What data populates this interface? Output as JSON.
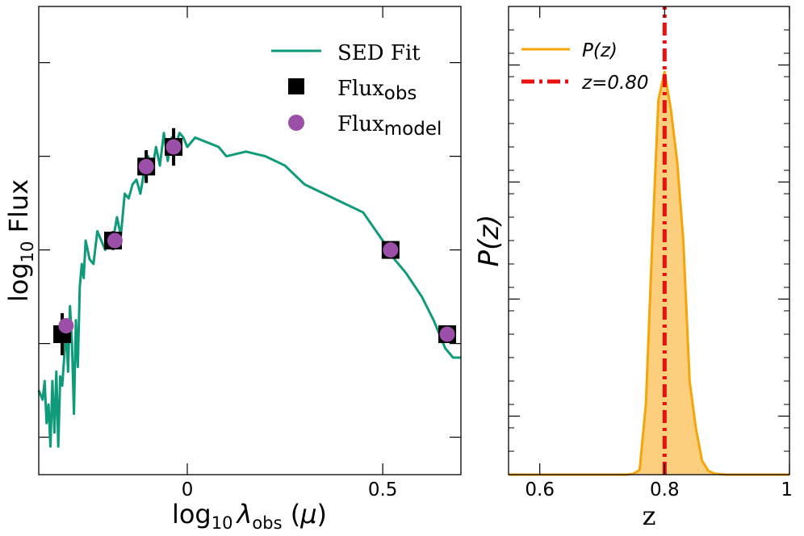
{
  "chart_data": [
    {
      "type": "line",
      "title": "",
      "xlabel": "log10 λobs (μ)",
      "ylabel": "log10 Flux",
      "xlim": [
        -0.38,
        0.7
      ],
      "ylim": [
        0,
        1
      ],
      "xticks": [
        0,
        0.5
      ],
      "xtick_labels": [
        "0",
        "0.5"
      ],
      "yticks": [
        0.08,
        0.28,
        0.48,
        0.68,
        0.88
      ],
      "ytick_labels": [],
      "grid": false,
      "legend_position": "top-right",
      "legend": {
        "sed_fit": "SED Fit",
        "obs_base": "Flux",
        "obs_sub": "obs",
        "model_base": "Flux",
        "model_sub": "model"
      },
      "series": [
        {
          "name": "SED Fit",
          "color": "#0f9b7a",
          "x": [
            -0.38,
            -0.37,
            -0.365,
            -0.36,
            -0.355,
            -0.35,
            -0.345,
            -0.34,
            -0.335,
            -0.33,
            -0.325,
            -0.32,
            -0.315,
            -0.31,
            -0.305,
            -0.3,
            -0.295,
            -0.29,
            -0.285,
            -0.28,
            -0.275,
            -0.27,
            -0.265,
            -0.26,
            -0.25,
            -0.24,
            -0.23,
            -0.22,
            -0.21,
            -0.2,
            -0.19,
            -0.18,
            -0.17,
            -0.16,
            -0.15,
            -0.14,
            -0.13,
            -0.12,
            -0.11,
            -0.1,
            -0.09,
            -0.08,
            -0.07,
            -0.06,
            -0.05,
            -0.04,
            -0.03,
            -0.02,
            -0.01,
            0.0,
            0.02,
            0.05,
            0.08,
            0.1,
            0.15,
            0.2,
            0.25,
            0.3,
            0.35,
            0.4,
            0.45,
            0.5,
            0.53,
            0.56,
            0.6,
            0.63,
            0.66,
            0.68,
            0.7
          ],
          "y": [
            0.18,
            0.16,
            0.2,
            0.11,
            0.15,
            0.06,
            0.2,
            0.09,
            0.22,
            0.06,
            0.21,
            0.19,
            0.25,
            0.32,
            0.22,
            0.36,
            0.28,
            0.13,
            0.33,
            0.23,
            0.4,
            0.45,
            0.42,
            0.5,
            0.46,
            0.45,
            0.52,
            0.5,
            0.48,
            0.5,
            0.5,
            0.55,
            0.51,
            0.6,
            0.59,
            0.62,
            0.63,
            0.6,
            0.65,
            0.68,
            0.65,
            0.7,
            0.66,
            0.73,
            0.67,
            0.72,
            0.7,
            0.73,
            0.72,
            0.7,
            0.72,
            0.71,
            0.7,
            0.68,
            0.69,
            0.68,
            0.66,
            0.62,
            0.6,
            0.58,
            0.56,
            0.5,
            0.46,
            0.43,
            0.38,
            0.33,
            0.27,
            0.25,
            0.25
          ]
        },
        {
          "name": "Flux obs",
          "color": "#000000",
          "x": [
            -0.32,
            -0.19,
            -0.105,
            -0.035,
            0.52,
            0.665
          ],
          "y": [
            0.3,
            0.5,
            0.658,
            0.7,
            0.48,
            0.3
          ],
          "yerr": [
            0.045,
            0.02,
            0.035,
            0.04,
            0.012,
            0.012
          ]
        },
        {
          "name": "Flux model",
          "color": "#9b4fa8",
          "x": [
            -0.31,
            -0.185,
            -0.105,
            -0.035,
            0.52,
            0.665
          ],
          "y": [
            0.318,
            0.5,
            0.658,
            0.7,
            0.48,
            0.3
          ]
        }
      ]
    },
    {
      "type": "area",
      "title": "",
      "xlabel": "z",
      "ylabel": "P(z)",
      "xlim": [
        0.55,
        1.0
      ],
      "ylim": [
        0,
        1
      ],
      "xticks": [
        0.6,
        0.8,
        1.0
      ],
      "xtick_labels": [
        "0.6",
        "0.8",
        "1"
      ],
      "major_yticks": [
        0.125,
        0.375,
        0.625,
        0.875
      ],
      "minor_yticks_step": 0.05,
      "grid": false,
      "legend_position": "top-left",
      "legend": {
        "pz_label": "P(z)",
        "z_label": "z=0.80"
      },
      "series": [
        {
          "name": "P(z)",
          "color": "#f5a50a",
          "fill": "#fccf7e",
          "x": [
            0.55,
            0.74,
            0.75,
            0.76,
            0.77,
            0.78,
            0.79,
            0.8,
            0.81,
            0.82,
            0.83,
            0.84,
            0.85,
            0.86,
            0.87,
            0.88,
            0.9,
            1.0
          ],
          "y": [
            0,
            0,
            0.002,
            0.01,
            0.15,
            0.49,
            0.8,
            0.86,
            0.78,
            0.67,
            0.5,
            0.2,
            0.1,
            0.03,
            0.008,
            0.002,
            0,
            0
          ]
        },
        {
          "name": "z=0.80",
          "color": "#e8110f",
          "x": [
            0.8,
            0.8
          ],
          "y": [
            0,
            1
          ]
        }
      ]
    }
  ]
}
